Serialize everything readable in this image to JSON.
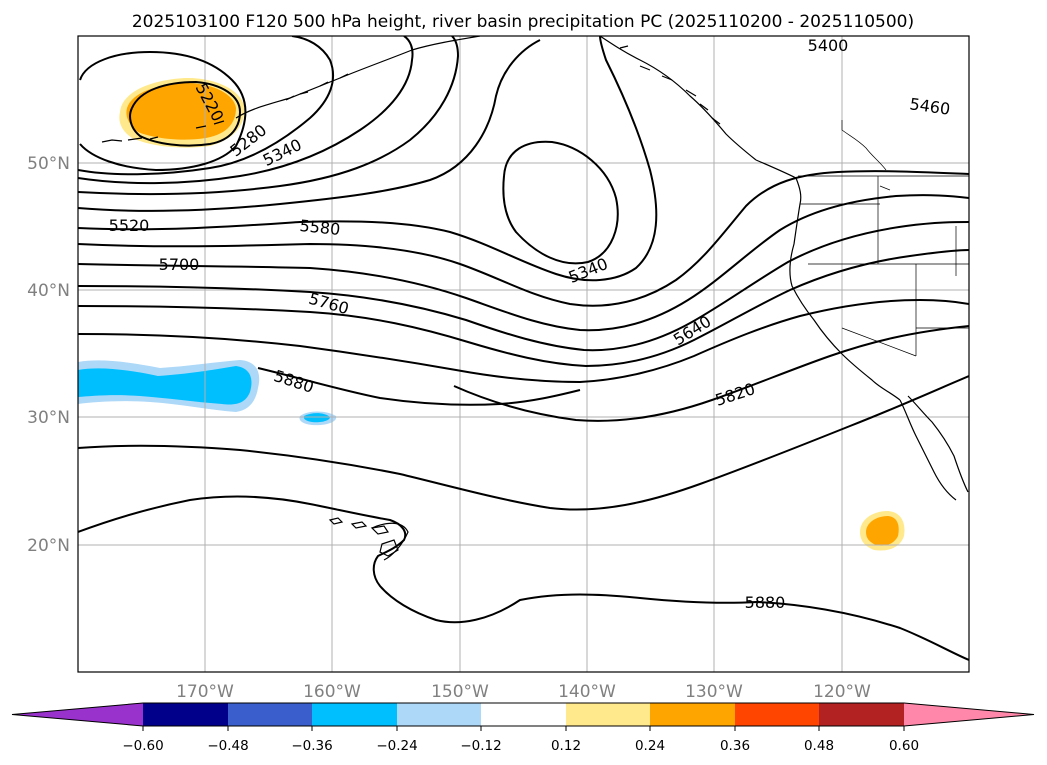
{
  "title": "2025103100 F120 500 hPa height, river basin precipitation PC (2025110200 - 2025110500)",
  "lon_labels": [
    "170°W",
    "160°W",
    "150°W",
    "140°W",
    "130°W",
    "120°W"
  ],
  "lat_labels": [
    "50°N",
    "40°N",
    "30°N",
    "20°N"
  ],
  "contour_labels": [
    "5400",
    "5460",
    "5220",
    "5280",
    "5340",
    "5520",
    "5580",
    "5340",
    "5700",
    "5760",
    "5640",
    "5880",
    "5820",
    "5880"
  ],
  "colorbar": {
    "ticks": [
      "−0.60",
      "−0.48",
      "−0.36",
      "−0.24",
      "−0.12",
      "0.12",
      "0.24",
      "0.36",
      "0.48",
      "0.60"
    ],
    "colors": [
      "#9932cc",
      "#00008b",
      "#3a5fcd",
      "#00bfff",
      "#add8f8",
      "#ffffff",
      "#ffe98c",
      "#ffa500",
      "#ff4500",
      "#b22222",
      "#ff88aa"
    ]
  },
  "shading_colors": {
    "orange": "#ffa500",
    "yellow": "#ffe98c",
    "blue": "#00bfff",
    "light_blue": "#add8f8"
  }
}
